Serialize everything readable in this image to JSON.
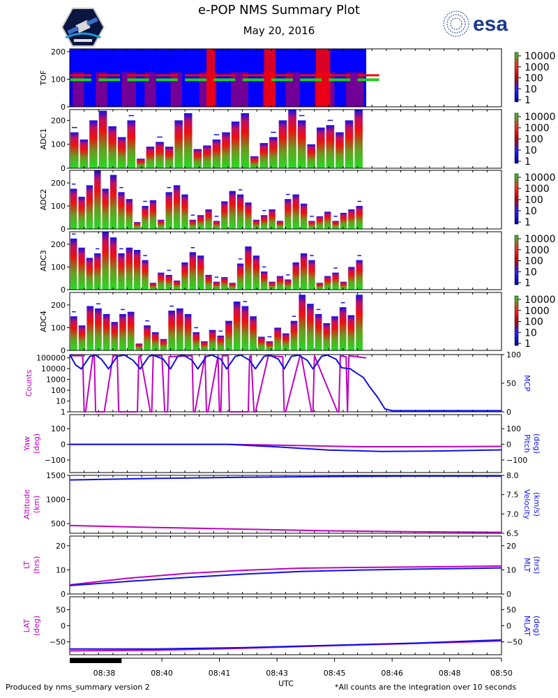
{
  "title": "e-POP NMS Summary Plot",
  "date": "May 20, 2016",
  "logos": {
    "left": "e-POP satellite mission badge",
    "right": "esa"
  },
  "footer": {
    "left": "Produced by nms_summary version 2",
    "right": "*All counts are the integration over 10 seconds"
  },
  "colors": {
    "magenta": "#c000c0",
    "blue": "#1010e0",
    "spec_bg": "#0000ff",
    "green": "#22cc22",
    "red": "#ff0000"
  },
  "chart_data": {
    "type": "multi-panel",
    "x_axis": {
      "label": "UTC",
      "range_minutes": [
        0,
        15
      ],
      "tick_labels": [
        "08:38",
        "08:40",
        "08:41",
        "08:43",
        "08:45",
        "08:46",
        "08:48",
        "08:50"
      ],
      "tick_minutes": [
        1.2,
        3.2,
        5.2,
        7.2,
        9.2,
        11.2,
        13.2,
        15.0
      ],
      "coverage_bar_minutes": [
        0,
        1.8
      ]
    },
    "spectrograms": [
      {
        "name": "TOF",
        "yticks": [
          "0",
          "100",
          "200"
        ],
        "ylim": [
          0,
          210
        ],
        "colorbar": [
          "10000",
          "1000",
          "100",
          "10",
          "1"
        ],
        "data_end_minute": 10.3,
        "note": "blue background; green/red bands near 100 and 120, red bursts around 4.9 and 6.9 minutes"
      },
      {
        "name": "ADC1",
        "yticks": [
          "0",
          "100",
          "200"
        ],
        "ylim": [
          0,
          245
        ],
        "colorbar": [
          "10000",
          "1000",
          "100",
          "10",
          "1"
        ],
        "peaks": [
          150,
          120,
          200,
          240,
          175,
          130,
          200,
          40,
          90,
          110,
          90,
          200,
          230,
          80,
          95,
          120,
          150,
          195,
          230,
          50,
          105,
          130,
          200,
          250,
          200,
          100,
          170,
          180,
          150,
          200,
          245
        ]
      },
      {
        "name": "ADC2",
        "yticks": [
          "0",
          "100",
          "200"
        ],
        "ylim": [
          0,
          255
        ],
        "colorbar": [
          "10000",
          "1000",
          "100",
          "10",
          "1"
        ],
        "peaks": [
          175,
          140,
          190,
          255,
          175,
          235,
          160,
          130,
          30,
          100,
          125,
          40,
          160,
          190,
          150,
          40,
          60,
          85,
          35,
          120,
          165,
          150,
          115,
          40,
          60,
          85,
          35,
          130,
          150,
          110,
          35,
          55,
          75,
          35,
          70,
          85,
          100
        ]
      },
      {
        "name": "ADC3",
        "yticks": [
          "0",
          "100",
          "200"
        ],
        "ylim": [
          0,
          255
        ],
        "colorbar": [
          "10000",
          "1000",
          "100",
          "10",
          "1"
        ],
        "peaks": [
          225,
          185,
          140,
          160,
          255,
          230,
          160,
          185,
          175,
          130,
          30,
          75,
          65,
          40,
          120,
          165,
          150,
          65,
          35,
          55,
          30,
          115,
          190,
          150,
          80,
          35,
          60,
          45,
          120,
          160,
          130,
          30,
          60,
          75,
          35,
          100,
          130
        ]
      },
      {
        "name": "ADC4",
        "yticks": [
          "0",
          "100",
          "200"
        ],
        "ylim": [
          0,
          255
        ],
        "colorbar": [
          "10000",
          "1000",
          "100",
          "10",
          "1"
        ],
        "peaks": [
          150,
          110,
          195,
          185,
          160,
          125,
          160,
          170,
          30,
          110,
          80,
          50,
          175,
          185,
          160,
          80,
          40,
          90,
          65,
          130,
          215,
          195,
          150,
          60,
          40,
          100,
          75,
          130,
          245,
          205,
          160,
          120,
          150,
          190,
          155,
          245
        ]
      }
    ],
    "line_panels": [
      {
        "left_label": "Counts",
        "right_label": "MCP",
        "left_ticks": [
          "1",
          "10",
          "100",
          "1000",
          "10000",
          "100000"
        ],
        "right_ticks": [
          "0",
          "50",
          "100"
        ],
        "left_log": true,
        "ylim_left": [
          1,
          200000
        ],
        "ylim_right": [
          0,
          100
        ],
        "left_series": {
          "name": "Counts",
          "color": "#c000c0",
          "note": "log10 values; alternates between ~1.5e5 plateaus and drops to 1",
          "x": [
            0,
            0.45,
            0.5,
            0.55,
            0.8,
            0.85,
            0.9,
            1.2,
            1.5,
            1.55,
            1.65,
            1.7,
            2.35,
            2.4,
            2.45,
            2.8,
            2.85,
            2.9,
            3.2,
            3.3,
            3.4,
            3.45,
            4.25,
            4.3,
            4.35,
            4.7,
            4.75,
            4.8,
            5.15,
            5.2,
            5.25,
            5.3,
            5.5,
            5.55,
            6.2,
            6.25,
            6.3,
            6.4,
            6.45,
            6.9,
            7.4,
            7.45,
            7.5,
            8.0,
            8.05,
            8.4,
            8.45,
            8.5,
            9.3,
            9.35,
            9.4,
            9.6,
            9.65,
            9.7,
            10.3
          ],
          "y": [
            5.2,
            5.2,
            0,
            0,
            5.1,
            5.2,
            0,
            0,
            5.1,
            5.2,
            5.2,
            0,
            0,
            5.1,
            5.2,
            0,
            0,
            5.2,
            5.2,
            0,
            0,
            5.1,
            5.2,
            0,
            0,
            5.2,
            0,
            0,
            5.2,
            0,
            0,
            5.2,
            5.2,
            0,
            0,
            5.1,
            5.2,
            0,
            0,
            5.2,
            5.1,
            0,
            0,
            5.2,
            5.1,
            0,
            0,
            5.2,
            0,
            0,
            5.2,
            5.1,
            0,
            5.2,
            5.0
          ]
        },
        "right_series": {
          "name": "MCP",
          "color": "#1010e0",
          "x": [
            0,
            0.2,
            0.4,
            0.7,
            0.9,
            1.1,
            1.35,
            1.65,
            1.9,
            2.2,
            2.45,
            2.75,
            2.9,
            3.25,
            3.5,
            3.75,
            3.95,
            4.25,
            4.45,
            4.75,
            4.95,
            5.25,
            5.45,
            5.75,
            5.95,
            6.25,
            6.45,
            6.75,
            6.95,
            7.25,
            7.45,
            7.7,
            7.95,
            8.25,
            8.45,
            8.75,
            8.95,
            9.25,
            9.45,
            9.75,
            9.95,
            10.2,
            10.4,
            10.7,
            10.95,
            11.2,
            11.4,
            15.0
          ],
          "y": [
            100,
            82,
            75,
            97,
            99,
            92,
            75,
            97,
            99,
            90,
            75,
            97,
            99,
            92,
            75,
            97,
            99,
            90,
            75,
            97,
            99,
            92,
            75,
            97,
            99,
            90,
            75,
            97,
            99,
            92,
            75,
            97,
            99,
            90,
            75,
            97,
            99,
            92,
            77,
            75,
            68,
            60,
            45,
            25,
            5,
            2,
            2,
            2
          ]
        }
      },
      {
        "left_label": "Yaw",
        "left_unit": "(deg)",
        "right_label": "Pitch",
        "right_unit": "(deg)",
        "left_ticks": [
          "−100",
          "0",
          "100"
        ],
        "right_ticks": [
          "−100",
          "0",
          "100"
        ],
        "ylim_left": [
          -180,
          190
        ],
        "ylim_right": [
          -180,
          190
        ],
        "left_series": {
          "name": "Yaw",
          "color": "#c000c0",
          "x": [
            0,
            5.5,
            8,
            10,
            12,
            15
          ],
          "y": [
            0,
            0,
            -8,
            -15,
            -15,
            -13
          ]
        },
        "right_series": {
          "name": "Pitch",
          "color": "#1010e0",
          "x": [
            0,
            5.5,
            7,
            9,
            10.8,
            12.5,
            15
          ],
          "y": [
            0,
            0,
            -14,
            -36,
            -45,
            -43,
            -35
          ]
        }
      },
      {
        "left_label": "Altitude",
        "left_unit": "(km)",
        "right_label": "Velocity",
        "right_unit": "(km/s)",
        "left_ticks": [
          "500",
          "1000",
          "1500"
        ],
        "right_ticks": [
          "6.5",
          "7.0",
          "7.5",
          "8.0"
        ],
        "ylim_left": [
          300,
          1500
        ],
        "ylim_right": [
          6.5,
          8.0
        ],
        "left_series": {
          "name": "Altitude",
          "color": "#c000c0",
          "x": [
            0,
            3,
            6,
            9,
            12,
            15
          ],
          "y": [
            460,
            420,
            385,
            350,
            330,
            320
          ]
        },
        "right_series": {
          "name": "Velocity",
          "color": "#1010e0",
          "x": [
            0,
            3,
            6,
            9,
            12,
            15
          ],
          "y": [
            7.88,
            7.92,
            7.95,
            7.97,
            7.98,
            7.98
          ]
        }
      },
      {
        "left_label": "LT",
        "left_unit": "(hrs)",
        "right_label": "MLT",
        "right_unit": "(hrs)",
        "left_ticks": [
          "0",
          "10",
          "20"
        ],
        "right_ticks": [
          "0",
          "10",
          "20"
        ],
        "ylim_left": [
          0,
          24
        ],
        "ylim_right": [
          0,
          24
        ],
        "left_series": {
          "name": "LT",
          "color": "#c000c0",
          "x": [
            0,
            2,
            4,
            6,
            8,
            10,
            12,
            15
          ],
          "y": [
            3.8,
            6.5,
            8.5,
            9.8,
            10.7,
            11.0,
            11.2,
            11.6
          ]
        },
        "right_series": {
          "name": "MLT",
          "color": "#1010e0",
          "x": [
            0,
            2,
            4,
            6,
            8,
            10,
            12,
            15
          ],
          "y": [
            3.5,
            5.2,
            6.8,
            8.2,
            9.3,
            9.9,
            10.3,
            10.8
          ]
        }
      },
      {
        "left_label": "LAT",
        "left_unit": "(deg)",
        "right_label": "MLAT",
        "right_unit": "(deg)",
        "left_ticks": [
          "−50",
          "0",
          "50"
        ],
        "right_ticks": [
          "−50",
          "0",
          "50"
        ],
        "ylim_left": [
          -90,
          90
        ],
        "ylim_right": [
          -90,
          90
        ],
        "left_series": {
          "name": "LAT",
          "color": "#c000c0",
          "x": [
            0,
            3,
            6,
            9,
            12,
            15
          ],
          "y": [
            -78,
            -76,
            -70,
            -62,
            -55,
            -47
          ]
        },
        "right_series": {
          "name": "MLAT",
          "color": "#1010e0",
          "x": [
            0,
            3,
            6,
            9,
            12,
            15
          ],
          "y": [
            -72,
            -72,
            -68,
            -61,
            -54,
            -44
          ]
        }
      }
    ]
  }
}
